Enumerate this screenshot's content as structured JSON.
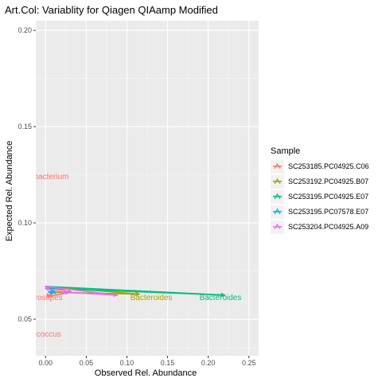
{
  "chart_data": {
    "type": "line",
    "title": "Art.Col: Variablity for Qiagen QIAamp  Modified",
    "xlabel": "Observed Rel. Abundance",
    "ylabel": "Expected Rel. Abundance",
    "xlim": [
      -0.012,
      0.262
    ],
    "ylim": [
      0.031,
      0.205
    ],
    "xticks": [
      0.0,
      0.05,
      0.1,
      0.15,
      0.2,
      0.25
    ],
    "xtick_labels": [
      "0.00",
      "0.05",
      "0.10",
      "0.15",
      "0.20",
      "0.25"
    ],
    "yticks": [
      0.05,
      0.1,
      0.15,
      0.2
    ],
    "ytick_labels": [
      "0.05",
      "0.10",
      "0.15",
      "0.20"
    ],
    "grid": true,
    "legend": {
      "title": "Sample",
      "position": "right"
    },
    "series": [
      {
        "name": "SC253185.PC04925.C06",
        "color": "#F8766D",
        "x": [
          0.0,
          0.032,
          0.004,
          0.002
        ],
        "y": [
          0.067,
          0.064,
          0.062,
          0.063
        ]
      },
      {
        "name": "SC253192.PC04925.B07",
        "color": "#A3A500",
        "x": [
          0.0,
          0.115,
          0.004
        ],
        "y": [
          0.067,
          0.063,
          0.064
        ]
      },
      {
        "name": "SC253195.PC04925.E07",
        "color": "#00BF7D",
        "x": [
          0.0,
          0.22,
          0.003
        ],
        "y": [
          0.067,
          0.0625,
          0.066
        ]
      },
      {
        "name": "SC253195.PC07578.E07",
        "color": "#00B0F6",
        "x": [
          0.0,
          0.012,
          0.004
        ],
        "y": [
          0.067,
          0.0635,
          0.064
        ]
      },
      {
        "name": "SC253204.PC04925.A09",
        "color": "#E76BF3",
        "x": [
          0.0,
          0.088,
          0.022,
          0.0
        ],
        "y": [
          0.067,
          0.0625,
          0.064,
          0.066
        ]
      }
    ],
    "annotations": [
      {
        "text": "bacterium",
        "x": 0.007,
        "y": 0.1245,
        "color": "#F8766D"
      },
      {
        "text": "ierostipes",
        "x": 0.0,
        "y": 0.0615,
        "color": "#F8766D"
      },
      {
        "text": "Bacteroides",
        "x": 0.13,
        "y": 0.0615,
        "color": "#A3A500"
      },
      {
        "text": "Bacteroides",
        "x": 0.215,
        "y": 0.0615,
        "color": "#00BF7D"
      },
      {
        "text": "iococcus",
        "x": 0.0,
        "y": 0.0425,
        "color": "#F8766D"
      }
    ]
  }
}
